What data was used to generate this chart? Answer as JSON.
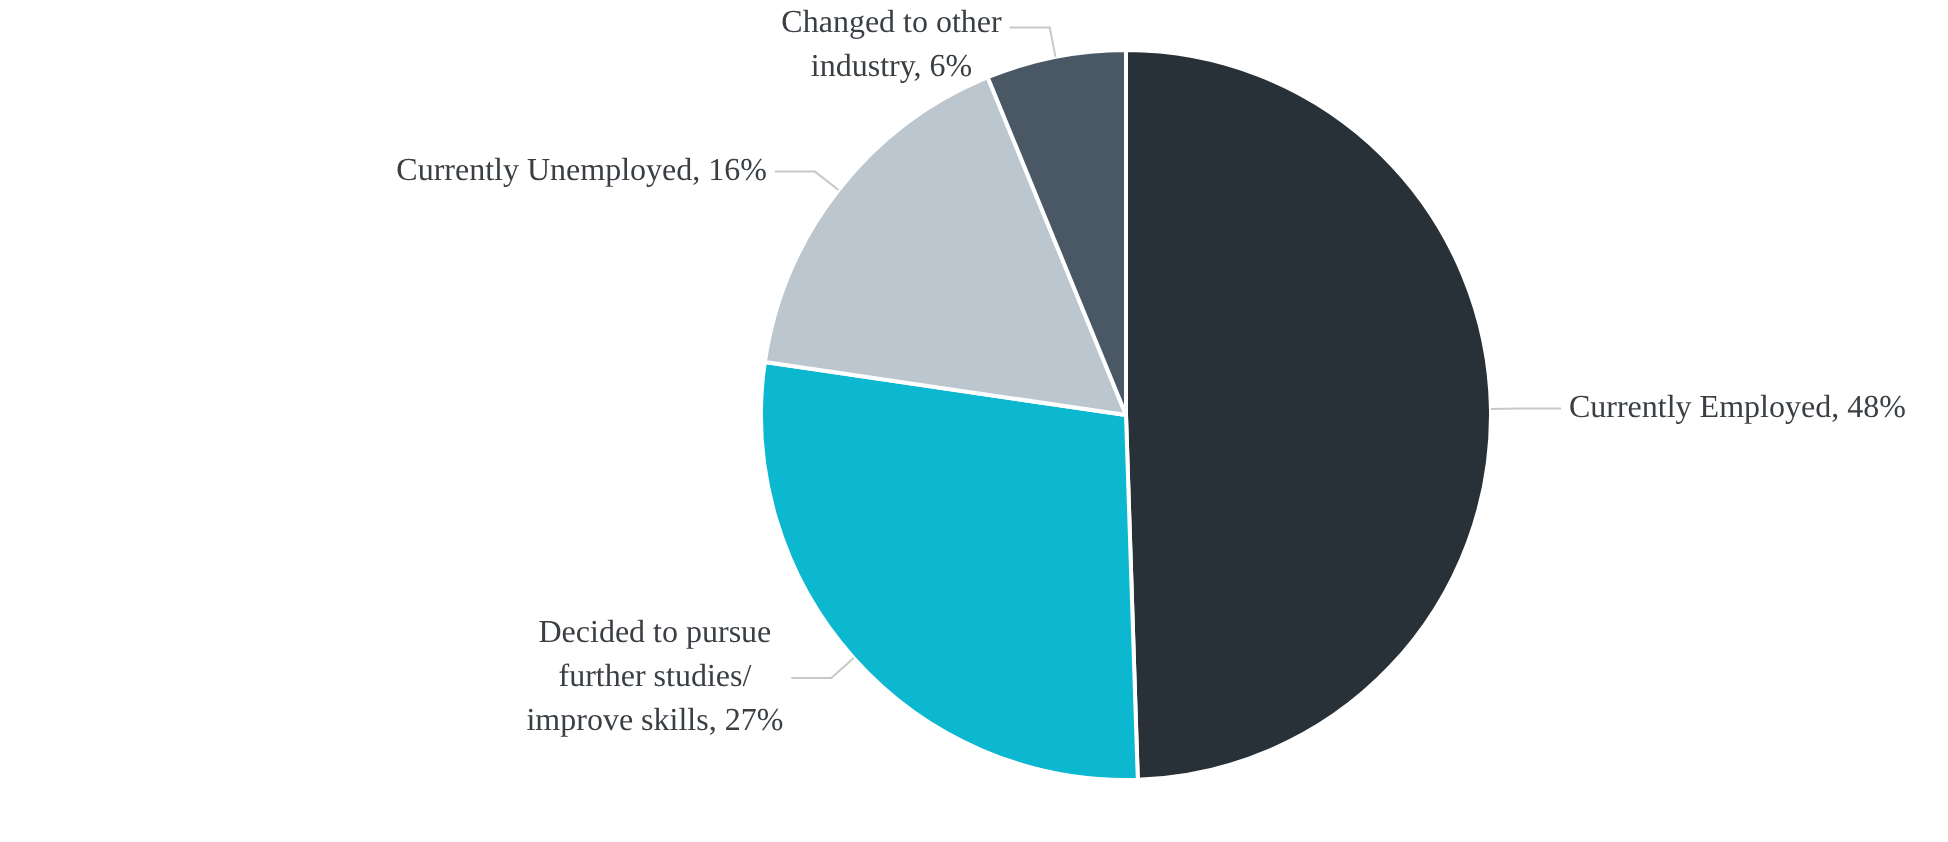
{
  "chart_data": {
    "type": "pie",
    "categories": [
      "Currently Employed",
      "Decided to pursue further studies/ improve skills",
      "Currently Unemployed",
      "Changed to other industry"
    ],
    "values": [
      48,
      27,
      16,
      6
    ],
    "value_labels": [
      "48%",
      "27%",
      "16%",
      "6%"
    ],
    "colors": [
      "#283038",
      "#0bb8d0",
      "#bcc6cf",
      "#4a5866"
    ],
    "legend": false
  }
}
